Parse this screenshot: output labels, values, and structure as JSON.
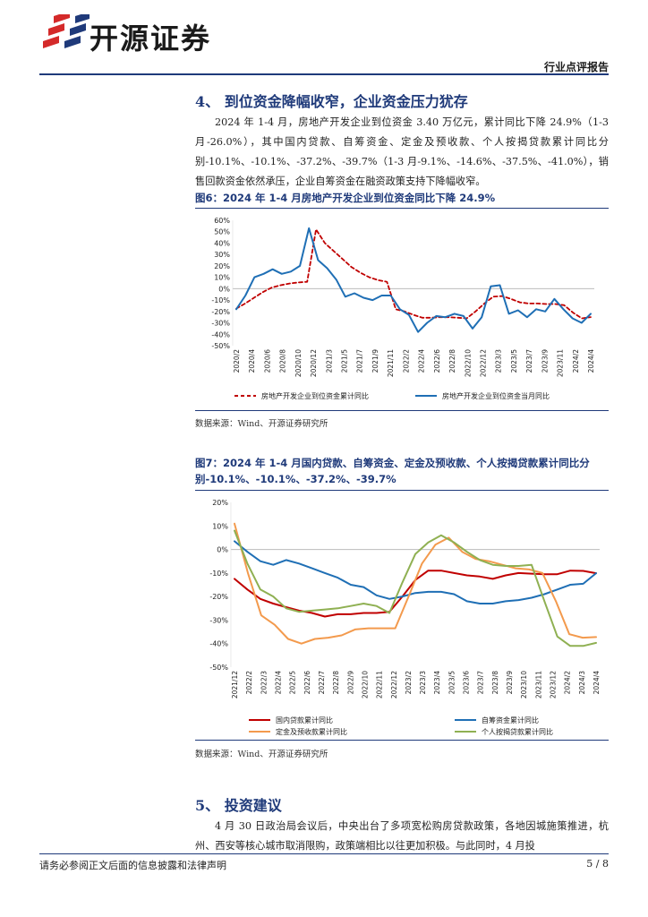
{
  "header": {
    "logo_text": "开源证券",
    "report_type": "行业点评报告"
  },
  "section4": {
    "title": "4、 到位资金降幅收窄，企业资金压力犹存",
    "paragraph": "2024 年 1-4 月，房地产开发企业到位资金 3.40 万亿元，累计同比下降 24.9%（1-3 月-26.0%），其中国内贷款、自筹资金、定金及预收款、个人按揭贷款累计同比分别-10.1%、-10.1%、-37.2%、-39.7%（1-3 月-9.1%、-14.6%、-37.5%、-41.0%），销售回款资金依然承压，企业自筹资金在融资政策支持下降幅收窄。"
  },
  "figure6": {
    "title": "图6：2024 年 1-4 月房地产开发企业到位资金同比下降 24.9%",
    "source": "数据来源：Wind、开源证券研究所"
  },
  "figure7": {
    "title": "图7：2024 年 1-4 月国内贷款、自筹资金、定金及预收款、个人按揭贷款累计同比分别-10.1%、-10.1%、-37.2%、-39.7%",
    "source": "数据来源：Wind、开源证券研究所"
  },
  "section5": {
    "title": "5、 投资建议",
    "paragraph": "4 月 30 日政治局会议后，中央出台了多项宽松购房贷款政策，各地因城施策推进，杭州、西安等核心城市取消限购，政策端相比以往更加积极。与此同时，4 月投"
  },
  "footer": {
    "disclaimer": "请务必参阅正文后面的信息披露和法律声明",
    "page": "5 / 8"
  },
  "chart_data": [
    {
      "type": "line",
      "ylim": [
        -50,
        60
      ],
      "yticks": [
        "60%",
        "50%",
        "40%",
        "30%",
        "20%",
        "10%",
        "0%",
        "-10%",
        "-20%",
        "-30%",
        "-40%",
        "-50%"
      ],
      "x_labels": [
        "2020/2",
        "2020/4",
        "2020/6",
        "2020/8",
        "2020/10",
        "2020/12",
        "2021/3",
        "2021/5",
        "2021/7",
        "2021/9",
        "2021/11",
        "2022/2",
        "2022/4",
        "2022/6",
        "2022/8",
        "2022/10",
        "2022/12",
        "2023/3",
        "2023/5",
        "2023/7",
        "2023/9",
        "2023/11",
        "2024/2",
        "2024/4"
      ],
      "series": [
        {
          "name": "房地产开发企业到位资金累计同比",
          "color": "#c00000",
          "dash": true,
          "values": [
            -17.5,
            -13,
            -8,
            -3,
            1,
            3,
            4.5,
            5.5,
            6,
            52,
            40,
            33,
            26,
            19,
            14,
            10,
            7.5,
            6,
            -18,
            -20,
            -23,
            -25.5,
            -25.5,
            -25,
            -25,
            -25.5,
            -26,
            -20,
            -13,
            -7,
            -6.5,
            -9,
            -12,
            -13,
            -13,
            -13.5,
            -13.5,
            -14.5,
            -21,
            -26,
            -24.9
          ]
        },
        {
          "name": "房地产开发企业到位资金当月同比",
          "color": "#1f6fb5",
          "dash": false,
          "values": [
            -18,
            -6,
            10,
            13,
            17,
            13,
            15,
            20,
            53,
            25,
            18,
            8,
            -7,
            -4,
            -8,
            -10,
            -6,
            -6,
            -18,
            -23,
            -38,
            -30,
            -24,
            -25,
            -22,
            -24,
            -35,
            -25,
            2,
            3,
            -22,
            -19,
            -25,
            -18,
            -20,
            -9,
            -18,
            -26,
            -30,
            -22
          ]
        }
      ]
    },
    {
      "type": "line",
      "ylim": [
        -50,
        20
      ],
      "yticks": [
        "20%",
        "10%",
        "0%",
        "-10%",
        "-20%",
        "-30%",
        "-40%",
        "-50%"
      ],
      "x_labels": [
        "2021/12",
        "2022/2",
        "2022/3",
        "2022/4",
        "2022/5",
        "2022/6",
        "2022/7",
        "2022/8",
        "2022/9",
        "2022/10",
        "2022/11",
        "2022/12",
        "2023/2",
        "2023/3",
        "2023/4",
        "2023/5",
        "2023/6",
        "2023/7",
        "2023/8",
        "2023/9",
        "2023/10",
        "2023/11",
        "2023/12",
        "2024/2",
        "2024/3",
        "2024/4"
      ],
      "series": [
        {
          "name": "国内贷款累计同比",
          "color": "#c00000",
          "values": [
            -12.5,
            -17,
            -21,
            -23,
            -24.5,
            -26,
            -27,
            -28.5,
            -27.5,
            -27.5,
            -27,
            -27,
            -26.5,
            -20,
            -13,
            -9,
            -9,
            -10,
            -11,
            -11.5,
            -12.5,
            -11,
            -10,
            -10.3,
            -10.5,
            -10.5,
            -9,
            -9.1,
            -10.1
          ]
        },
        {
          "name": "自筹资金累计同比",
          "color": "#1f6fb5",
          "values": [
            3.5,
            -1,
            -5,
            -6.5,
            -4.5,
            -6,
            -8,
            -10,
            -12,
            -15,
            -16,
            -19.5,
            -21,
            -20,
            -18.5,
            -18,
            -18,
            -19,
            -22,
            -23,
            -23,
            -22,
            -21.5,
            -20.5,
            -19,
            -17,
            -15,
            -14.6,
            -10.1
          ]
        },
        {
          "name": "定金及预收款累计同比",
          "color": "#f39a4d",
          "values": [
            11,
            -10,
            -28,
            -32,
            -38,
            -40,
            -38,
            -37.5,
            -36.5,
            -34,
            -33.5,
            -33.5,
            -33.5,
            -20,
            -6,
            2,
            5,
            -1,
            -4,
            -5,
            -6.5,
            -8,
            -8.5,
            -10,
            -22,
            -36,
            -37.5,
            -37.2
          ]
        },
        {
          "name": "个人按揭贷款累计同比",
          "color": "#8fb052",
          "values": [
            8,
            -6,
            -17,
            -20,
            -25,
            -26.5,
            -26,
            -25.5,
            -25,
            -24,
            -23,
            -24,
            -27,
            -14,
            -2,
            3,
            6,
            3,
            -1,
            -4.5,
            -6.5,
            -7,
            -7,
            -6.5,
            -22,
            -37,
            -41,
            -41,
            -39.7
          ]
        }
      ]
    }
  ]
}
